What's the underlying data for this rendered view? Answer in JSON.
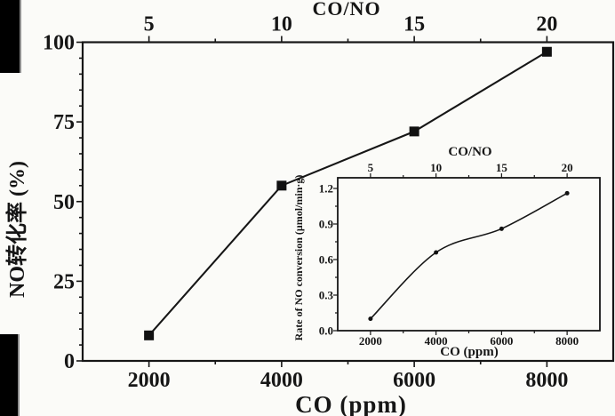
{
  "figure": {
    "ink": "#161616",
    "background": "#fbfbf8",
    "marker_color": "#111111",
    "description": "Scanned line chart of NO conversion vs CO concentration with rate inset"
  },
  "chart_data": [
    {
      "id": "main",
      "type": "line",
      "title": "",
      "xlabel": "CO (ppm)",
      "ylabel": "NO转化率 (%)",
      "top_axis_label": "CO/NO",
      "x": [
        2000,
        4000,
        6000,
        8000
      ],
      "series": [
        {
          "name": "NO conversion (%)",
          "values": [
            8,
            55,
            72,
            97
          ]
        }
      ],
      "xlim": [
        1000,
        9000
      ],
      "ylim": [
        0,
        100
      ],
      "x_ticks": [
        2000,
        4000,
        6000,
        8000
      ],
      "x_tick_labels": [
        "2000",
        "4000",
        "6000",
        "8000"
      ],
      "x_minor_ticks": [
        3000,
        5000,
        7000
      ],
      "y_ticks": [
        0,
        25,
        50,
        75,
        100
      ],
      "y_tick_labels": [
        "0",
        "25",
        "50",
        "75",
        "100"
      ],
      "y_minor_interval": 5,
      "top_ticks": [
        "5",
        "10",
        "15",
        "20"
      ],
      "marker": "square",
      "smooth": false,
      "grid": false,
      "legend": "none"
    },
    {
      "id": "inset",
      "type": "line",
      "title": "",
      "xlabel": "CO (ppm)",
      "ylabel": "Rate of NO conversion (μmol/min·g)",
      "top_axis_label": "CO/NO",
      "x": [
        2000,
        4000,
        6000,
        8000
      ],
      "series": [
        {
          "name": "Rate of NO conversion (μmol/min·g)",
          "values": [
            0.1,
            0.66,
            0.86,
            1.16
          ]
        }
      ],
      "xlim": [
        1000,
        9000
      ],
      "ylim": [
        0,
        1.29
      ],
      "x_ticks": [
        2000,
        4000,
        6000,
        8000
      ],
      "x_tick_labels": [
        "2000",
        "4000",
        "6000",
        "8000"
      ],
      "x_minor_ticks": [
        3000,
        5000,
        7000
      ],
      "y_ticks": [
        0,
        0.3,
        0.6,
        0.9,
        1.2
      ],
      "y_tick_labels": [
        "0.0",
        "0.3",
        "0.6",
        "0.9",
        "1.2"
      ],
      "y_minor_interval": 0.15,
      "top_ticks": [
        "5",
        "10",
        "15",
        "20"
      ],
      "marker": "circle",
      "smooth": true,
      "grid": false,
      "legend": "none"
    }
  ]
}
